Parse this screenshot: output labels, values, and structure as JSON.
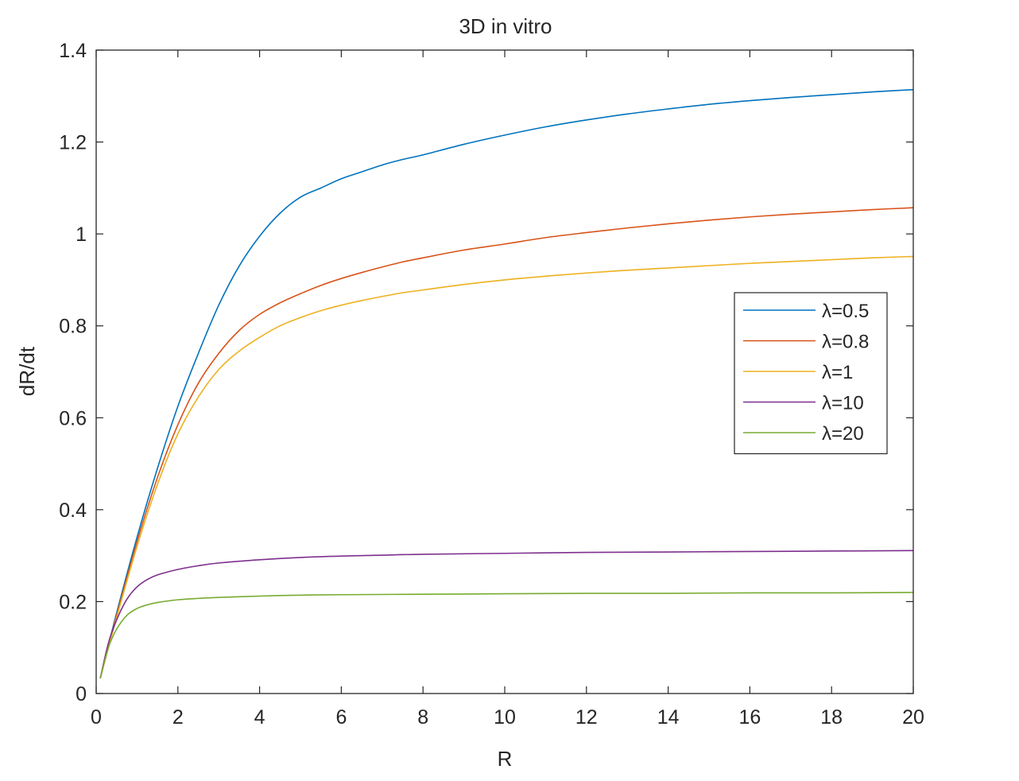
{
  "chart_data": {
    "type": "line",
    "title": "3D in vitro",
    "xlabel": "R",
    "ylabel": "dR/dt",
    "xlim": [
      0,
      20
    ],
    "ylim": [
      0,
      1.4
    ],
    "xticks": [
      0,
      2,
      4,
      6,
      8,
      10,
      12,
      14,
      16,
      18,
      20
    ],
    "yticks": [
      0,
      0.2,
      0.4,
      0.6,
      0.8,
      1,
      1.2,
      1.4
    ],
    "legend_position": "right-middle",
    "grid": false,
    "series": [
      {
        "name": "λ=0.5",
        "color": "#0072BD",
        "x": [
          0.1,
          0.5,
          1,
          1.5,
          2,
          2.5,
          3,
          3.5,
          4,
          4.5,
          5,
          5.5,
          6,
          6.5,
          7,
          7.5,
          8,
          9,
          10,
          11,
          12,
          13,
          14,
          15,
          16,
          17,
          18,
          19,
          20
        ],
        "y": [
          0.033,
          0.175,
          0.34,
          0.49,
          0.625,
          0.74,
          0.845,
          0.93,
          0.995,
          1.045,
          1.08,
          1.1,
          1.12,
          1.135,
          1.15,
          1.162,
          1.172,
          1.195,
          1.215,
          1.233,
          1.248,
          1.261,
          1.272,
          1.282,
          1.29,
          1.297,
          1.303,
          1.309,
          1.314
        ]
      },
      {
        "name": "λ=0.8",
        "color": "#D95319",
        "x": [
          0.1,
          0.5,
          1,
          1.5,
          2,
          2.5,
          3,
          3.5,
          4,
          4.5,
          5,
          5.5,
          6,
          6.5,
          7,
          7.5,
          8,
          9,
          10,
          11,
          12,
          13,
          14,
          15,
          16,
          17,
          18,
          19,
          20
        ],
        "y": [
          0.033,
          0.17,
          0.33,
          0.47,
          0.585,
          0.675,
          0.74,
          0.79,
          0.825,
          0.85,
          0.87,
          0.888,
          0.903,
          0.916,
          0.928,
          0.939,
          0.948,
          0.965,
          0.978,
          0.992,
          1.003,
          1.013,
          1.022,
          1.03,
          1.037,
          1.043,
          1.048,
          1.053,
          1.057
        ]
      },
      {
        "name": "λ=1",
        "color": "#EDB120",
        "x": [
          0.1,
          0.5,
          1,
          1.5,
          2,
          2.5,
          3,
          3.5,
          4,
          4.5,
          5,
          5.5,
          6,
          6.5,
          7,
          7.5,
          8,
          9,
          10,
          11,
          12,
          13,
          14,
          15,
          16,
          17,
          18,
          19,
          20
        ],
        "y": [
          0.033,
          0.165,
          0.32,
          0.455,
          0.565,
          0.645,
          0.705,
          0.745,
          0.775,
          0.8,
          0.818,
          0.833,
          0.845,
          0.855,
          0.864,
          0.872,
          0.878,
          0.89,
          0.9,
          0.908,
          0.915,
          0.921,
          0.926,
          0.931,
          0.936,
          0.94,
          0.944,
          0.948,
          0.951
        ]
      },
      {
        "name": "λ=10",
        "color": "#7E2F8E",
        "x": [
          0.1,
          0.3,
          0.5,
          0.75,
          1,
          1.25,
          1.5,
          2,
          2.5,
          3,
          4,
          5,
          6,
          7,
          8,
          10,
          12,
          14,
          16,
          18,
          20
        ],
        "y": [
          0.033,
          0.11,
          0.16,
          0.205,
          0.232,
          0.248,
          0.258,
          0.27,
          0.278,
          0.284,
          0.291,
          0.296,
          0.299,
          0.301,
          0.303,
          0.305,
          0.307,
          0.308,
          0.309,
          0.31,
          0.311
        ]
      },
      {
        "name": "λ=20",
        "color": "#77AC30",
        "x": [
          0.1,
          0.3,
          0.5,
          0.75,
          1,
          1.25,
          1.5,
          2,
          2.5,
          3,
          4,
          5,
          6,
          8,
          10,
          12,
          14,
          16,
          18,
          20
        ],
        "y": [
          0.033,
          0.1,
          0.14,
          0.17,
          0.185,
          0.193,
          0.198,
          0.204,
          0.207,
          0.209,
          0.212,
          0.214,
          0.215,
          0.216,
          0.217,
          0.218,
          0.218,
          0.219,
          0.219,
          0.22
        ]
      }
    ]
  }
}
